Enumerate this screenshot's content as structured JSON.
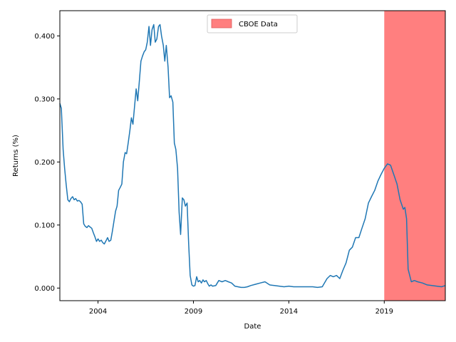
{
  "chart_data": {
    "type": "line",
    "title": "",
    "xlabel": "Date",
    "ylabel": "Returns (%)",
    "xlim": [
      2002.0,
      2022.2
    ],
    "ylim": [
      -0.02,
      0.44
    ],
    "grid": false,
    "legend_position": "top-center",
    "x_ticks": [
      2004,
      2009,
      2014,
      2019
    ],
    "x_tick_labels": [
      "2004",
      "2009",
      "2014",
      "2019"
    ],
    "y_ticks": [
      0.0,
      0.1,
      0.2,
      0.3,
      0.4
    ],
    "y_tick_labels": [
      "0.000",
      "0.100",
      "0.200",
      "0.300",
      "0.400"
    ],
    "line_color": "#1f77b4",
    "shaded_region": {
      "label": "CBOE Data",
      "x_start": 2019.0,
      "x_end": 2022.2,
      "color": "#ff7f7f"
    },
    "series": [
      {
        "x": [
          2002.0,
          2002.08,
          2002.17,
          2002.25,
          2002.33,
          2002.42,
          2002.5,
          2002.58,
          2002.67,
          2002.75,
          2002.83,
          2002.92,
          2003.0,
          2003.08,
          2003.17,
          2003.25,
          2003.33,
          2003.42,
          2003.5,
          2003.58,
          2003.67,
          2003.75,
          2003.83,
          2003.92,
          2004.0,
          2004.08,
          2004.17,
          2004.25,
          2004.33,
          2004.42,
          2004.5,
          2004.58,
          2004.67,
          2004.75,
          2004.83,
          2004.92,
          2005.0,
          2005.08,
          2005.17,
          2005.25,
          2005.33,
          2005.42,
          2005.5,
          2005.58,
          2005.67,
          2005.75,
          2005.83,
          2005.92,
          2006.0,
          2006.08,
          2006.17,
          2006.25,
          2006.33,
          2006.42,
          2006.5,
          2006.58,
          2006.67,
          2006.75,
          2006.83,
          2006.92,
          2007.0,
          2007.08,
          2007.17,
          2007.25,
          2007.33,
          2007.42,
          2007.5,
          2007.58,
          2007.67,
          2007.75,
          2007.83,
          2007.92,
          2008.0,
          2008.08,
          2008.17,
          2008.25,
          2008.33,
          2008.42,
          2008.5,
          2008.58,
          2008.67,
          2008.75,
          2008.83,
          2008.92,
          2009.0,
          2009.08,
          2009.17,
          2009.25,
          2009.33,
          2009.42,
          2009.5,
          2009.58,
          2009.67,
          2009.75,
          2009.83,
          2009.92,
          2010.0,
          2010.17,
          2010.33,
          2010.5,
          2010.67,
          2010.83,
          2011.0,
          2011.17,
          2011.33,
          2011.5,
          2011.67,
          2011.83,
          2012.0,
          2012.25,
          2012.5,
          2012.75,
          2013.0,
          2013.25,
          2013.5,
          2013.75,
          2014.0,
          2014.25,
          2014.5,
          2014.75,
          2015.0,
          2015.25,
          2015.5,
          2015.75,
          2016.0,
          2016.17,
          2016.33,
          2016.5,
          2016.67,
          2016.83,
          2017.0,
          2017.17,
          2017.33,
          2017.5,
          2017.67,
          2017.83,
          2018.0,
          2018.17,
          2018.33,
          2018.5,
          2018.67,
          2018.83,
          2019.0,
          2019.17,
          2019.33,
          2019.5,
          2019.67,
          2019.83,
          2020.0,
          2020.08,
          2020.17,
          2020.25,
          2020.42,
          2020.58,
          2020.75,
          2021.0,
          2021.25,
          2021.5,
          2021.75,
          2022.0,
          2022.2
        ],
        "y": [
          0.293,
          0.285,
          0.22,
          0.19,
          0.165,
          0.14,
          0.137,
          0.142,
          0.145,
          0.14,
          0.142,
          0.138,
          0.139,
          0.137,
          0.133,
          0.102,
          0.098,
          0.096,
          0.099,
          0.097,
          0.095,
          0.088,
          0.082,
          0.074,
          0.078,
          0.074,
          0.076,
          0.072,
          0.07,
          0.075,
          0.08,
          0.074,
          0.076,
          0.09,
          0.105,
          0.122,
          0.13,
          0.155,
          0.16,
          0.165,
          0.2,
          0.215,
          0.213,
          0.23,
          0.25,
          0.27,
          0.26,
          0.29,
          0.316,
          0.297,
          0.33,
          0.36,
          0.368,
          0.375,
          0.378,
          0.39,
          0.415,
          0.385,
          0.41,
          0.418,
          0.39,
          0.395,
          0.415,
          0.418,
          0.4,
          0.385,
          0.36,
          0.385,
          0.35,
          0.302,
          0.305,
          0.295,
          0.23,
          0.22,
          0.19,
          0.12,
          0.085,
          0.143,
          0.14,
          0.13,
          0.135,
          0.07,
          0.02,
          0.005,
          0.003,
          0.004,
          0.018,
          0.01,
          0.012,
          0.008,
          0.013,
          0.01,
          0.012,
          0.007,
          0.003,
          0.005,
          0.003,
          0.004,
          0.012,
          0.01,
          0.012,
          0.01,
          0.008,
          0.003,
          0.002,
          0.001,
          0.001,
          0.002,
          0.004,
          0.006,
          0.008,
          0.01,
          0.005,
          0.004,
          0.003,
          0.002,
          0.003,
          0.002,
          0.002,
          0.002,
          0.002,
          0.002,
          0.001,
          0.002,
          0.015,
          0.02,
          0.018,
          0.02,
          0.015,
          0.028,
          0.04,
          0.06,
          0.065,
          0.08,
          0.08,
          0.095,
          0.11,
          0.135,
          0.145,
          0.155,
          0.17,
          0.18,
          0.19,
          0.197,
          0.195,
          0.18,
          0.165,
          0.14,
          0.125,
          0.128,
          0.11,
          0.03,
          0.01,
          0.012,
          0.01,
          0.008,
          0.005,
          0.004,
          0.003,
          0.002,
          0.004
        ]
      }
    ]
  }
}
